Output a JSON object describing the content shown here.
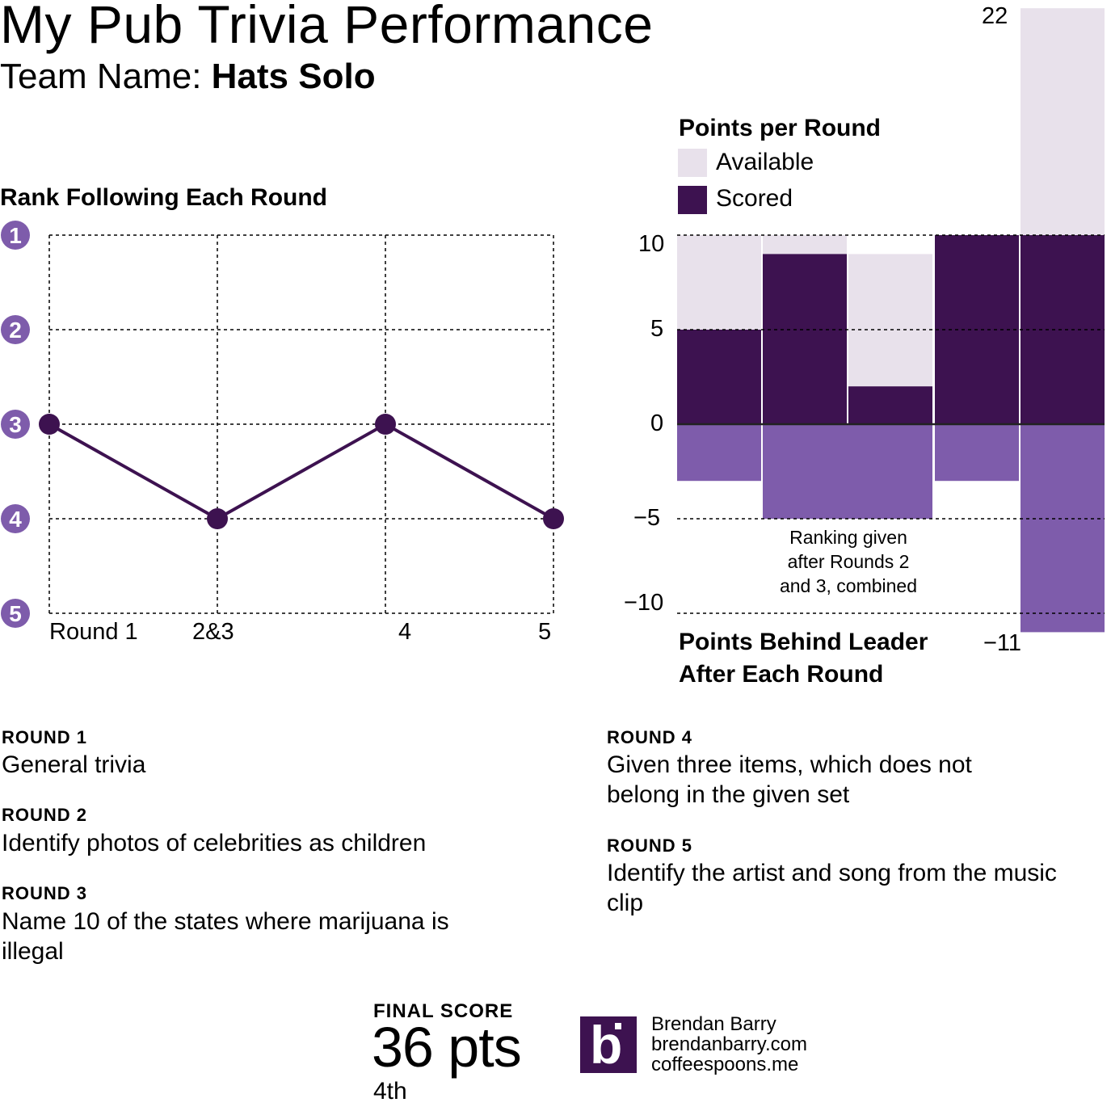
{
  "header": {
    "title": "My Pub Trivia Performance",
    "team_label": "Team Name:",
    "team_name": "Hats Solo"
  },
  "colors": {
    "dark_purple": "#3d1250",
    "mid_purple": "#7e5cab",
    "light_lilac": "#e8e1eb",
    "badge_purple": "#7e5cab"
  },
  "chart_data": [
    {
      "type": "line",
      "title": "Rank Following Each Round",
      "categories": [
        "Round 1",
        "2&3",
        "4",
        "5"
      ],
      "values": [
        3,
        4,
        3,
        4
      ],
      "yticks": [
        "1",
        "2",
        "3",
        "4",
        "5"
      ],
      "ylim": [
        1,
        5
      ],
      "y_inverted": true,
      "grid": true
    },
    {
      "type": "bar",
      "title": "Points per Round",
      "legend": [
        "Available",
        "Scored"
      ],
      "legend_position": "top-left",
      "categories": [
        "Round 1",
        "Round 2",
        "Round 3",
        "Round 4",
        "Round 5"
      ],
      "series": [
        {
          "name": "Available",
          "values": [
            10,
            10,
            9,
            10,
            22
          ]
        },
        {
          "name": "Scored",
          "values": [
            5,
            9,
            2,
            10,
            10
          ]
        }
      ],
      "annotations": [
        {
          "text": "22",
          "target": "Round 5 Available"
        }
      ],
      "yticks": [
        "10",
        "5",
        "0",
        "−5",
        "−10"
      ],
      "ylim": [
        -11,
        22
      ],
      "grid": true
    },
    {
      "type": "bar",
      "title": "Points Behind Leader After Each Round",
      "categories": [
        "Round 1",
        "Rounds 2&3",
        "Round 4",
        "Round 5"
      ],
      "values": [
        -3,
        -5,
        -3,
        -11
      ],
      "annotations": [
        {
          "text": "Ranking given after Rounds 2 and 3, combined",
          "target": "Rounds 2&3"
        },
        {
          "text": "−11",
          "target": "Round 5"
        }
      ]
    }
  ],
  "rank_chart": {
    "title": "Rank Following Each Round",
    "badges": [
      "1",
      "2",
      "3",
      "4",
      "5"
    ],
    "xlabels": [
      "Round 1",
      "2&3",
      "4",
      "5"
    ]
  },
  "points_chart": {
    "title": "Points per Round",
    "legend_available": "Available",
    "legend_scored": "Scored",
    "max_label": "22",
    "ticks": [
      "10",
      "5",
      "0",
      "−5",
      "−10"
    ],
    "behind_title_line1": "Points Behind Leader",
    "behind_title_line2": "After Each Round",
    "behind_min_label": "−11",
    "note_line1": "Ranking given",
    "note_line2": "after Rounds 2",
    "note_line3": "and 3, combined"
  },
  "rounds": [
    {
      "heading": "ROUND 1",
      "description": "General trivia"
    },
    {
      "heading": "ROUND 2",
      "description": "Identify photos of celebrities as children"
    },
    {
      "heading": "ROUND 3",
      "description": "Name 10 of the states where marijuana is illegal"
    },
    {
      "heading": "ROUND 4",
      "description": "Given three items, which does not belong in the given set"
    },
    {
      "heading": "ROUND 5",
      "description": "Identify the artist and song from the music clip"
    }
  ],
  "final": {
    "label": "FINAL SCORE",
    "score": "36 pts",
    "place": "4th"
  },
  "credit": {
    "logo_letter": "b",
    "name": "Brendan Barry",
    "site1": "brendanbarry.com",
    "site2": "coffeespoons.me"
  }
}
